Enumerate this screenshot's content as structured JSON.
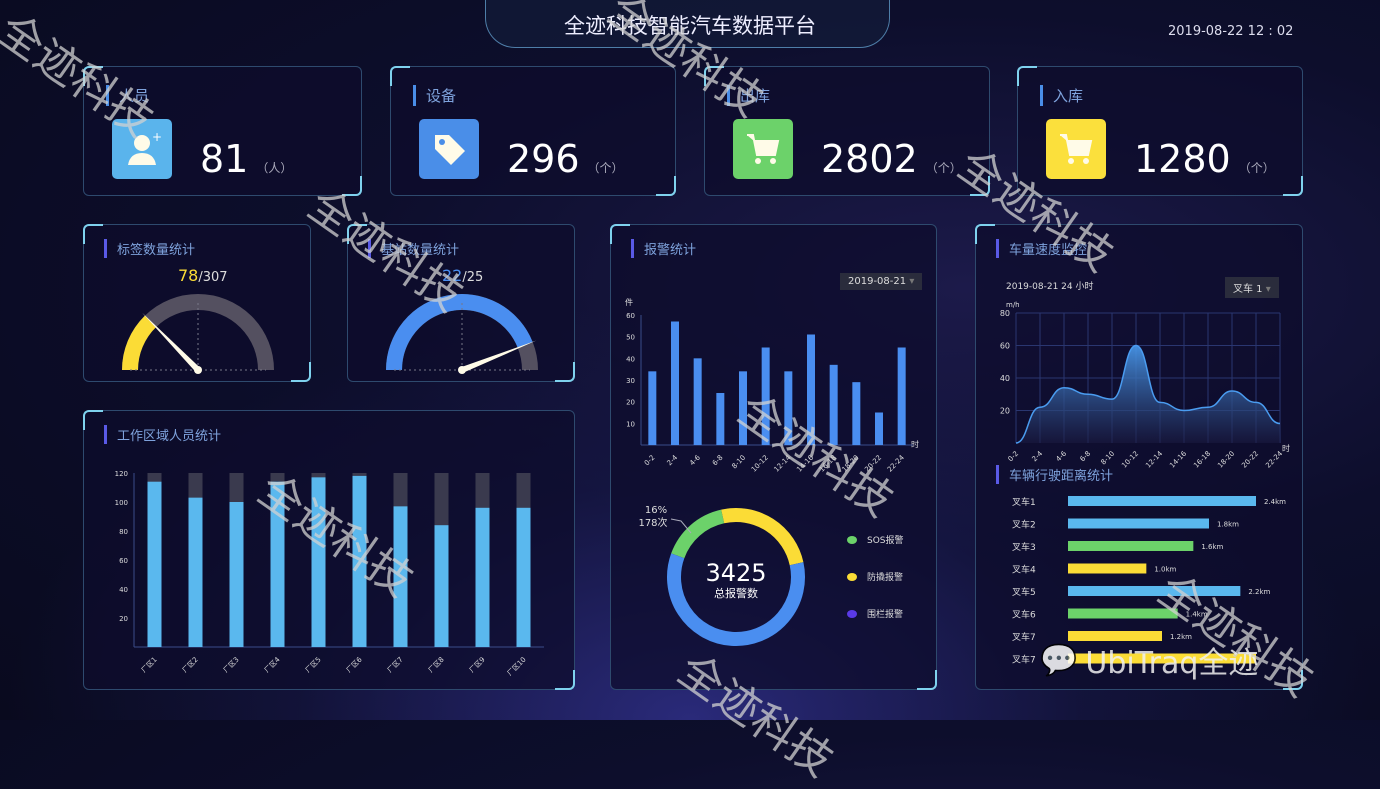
{
  "header": {
    "title": "全迹科技智能汽车数据平台",
    "datetime": "2019-08-22  12 : 02"
  },
  "cards": [
    {
      "label": "人员",
      "value": "81",
      "unit": "（人）",
      "icon": "user-add-icon",
      "color": "#5ab4ec"
    },
    {
      "label": "设备",
      "value": "296",
      "unit": "（个）",
      "icon": "tag-icon",
      "color": "#4a8ee8"
    },
    {
      "label": "出库",
      "value": "2802",
      "unit": "（个）",
      "icon": "cart-icon",
      "color": "#6cd26a"
    },
    {
      "label": "入库",
      "value": "1280",
      "unit": "（个）",
      "icon": "cart-icon",
      "color": "#fbe03c"
    }
  ],
  "gauges": [
    {
      "title": "标签数量统计",
      "value": 78,
      "total": 307,
      "value_text": "78",
      "total_text": "/307",
      "color": "#fbdc36"
    },
    {
      "title": "基站数量统计",
      "value": 22,
      "total": 25,
      "value_text": "22",
      "total_text": "/25",
      "color": "#4a8ef0"
    }
  ],
  "chart_data": [
    {
      "type": "bar",
      "title": "工作区域人员统计",
      "categories": [
        "厂区1",
        "厂区2",
        "厂区3",
        "厂区4",
        "厂区5",
        "厂区6",
        "厂区7",
        "厂区8",
        "厂区9",
        "厂区10"
      ],
      "values": [
        114,
        103,
        100,
        114,
        117,
        118,
        97,
        84,
        96,
        96
      ],
      "background_max": 120,
      "ylim": [
        0,
        120
      ],
      "yticks": [
        "20",
        "40",
        "60",
        "80",
        "100",
        "120"
      ],
      "color": "#5ab8ee"
    },
    {
      "type": "bar",
      "title": "报警统计",
      "ylabel": "件",
      "xlabel": "时",
      "date_select": "2019-08-21",
      "categories": [
        "0-2",
        "2-4",
        "4-6",
        "6-8",
        "8-10",
        "10-12",
        "12-14",
        "14-16",
        "16-18",
        "18-20",
        "20-22",
        "22-24"
      ],
      "values": [
        34,
        57,
        40,
        24,
        34,
        45,
        34,
        51,
        37,
        29,
        15,
        45
      ],
      "ylim": [
        0,
        60
      ],
      "yticks": [
        "10",
        "20",
        "30",
        "40",
        "50",
        "60"
      ],
      "color": "#4a8ef0"
    },
    {
      "type": "pie",
      "center_value": "3425",
      "center_label": "总报警数",
      "annotation_pct": "16%",
      "annotation_count": "178次",
      "slices": [
        {
          "name": "SOS报警",
          "value": 16,
          "color": "#6cd26a"
        },
        {
          "name": "防撬报警",
          "value": 25,
          "color": "#fbdc36"
        },
        {
          "name": "围栏报警",
          "value": 59,
          "color": "#4a8ef0"
        }
      ],
      "legend_colors": [
        "#6cd26a",
        "#fbdc36",
        "#5a3ae6"
      ]
    },
    {
      "type": "area",
      "title": "车量速度监控",
      "subtitle": "2019-08-21   24 小时",
      "vehicle_select": "叉车 1",
      "ylabel": "m/h",
      "xlabel": "时",
      "categories": [
        "0-2",
        "2-4",
        "4-6",
        "6-8",
        "8-10",
        "10-12",
        "12-14",
        "14-16",
        "16-18",
        "18-20",
        "20-22",
        "22-24"
      ],
      "values": [
        0,
        22,
        34,
        30,
        27,
        60,
        25,
        20,
        22,
        32,
        25,
        12
      ],
      "ylim": [
        0,
        80
      ],
      "yticks": [
        "20",
        "40",
        "60",
        "80"
      ],
      "grid": true,
      "color": "#4a9cf0"
    },
    {
      "type": "bar",
      "orientation": "horizontal",
      "title": "车辆行驶距离统计",
      "categories": [
        "叉车1",
        "叉车2",
        "叉车3",
        "叉车4",
        "叉车5",
        "叉车6",
        "叉车7",
        "叉车7"
      ],
      "values": [
        2.4,
        1.8,
        1.6,
        1.0,
        2.2,
        1.4,
        1.2,
        2.4
      ],
      "labels": [
        "2.4km",
        "1.8km",
        "1.6km",
        "1.0km",
        "2.2km",
        "1.4km",
        "1.2km",
        ""
      ],
      "colors": [
        "#5ab8ee",
        "#5ab8ee",
        "#6cd26a",
        "#fbdc36",
        "#5ab8ee",
        "#6cd26a",
        "#fbdc36",
        "#fbdc36"
      ]
    }
  ],
  "watermark": {
    "text": "全迹科技",
    "logo": "UbiTraq全迹"
  }
}
